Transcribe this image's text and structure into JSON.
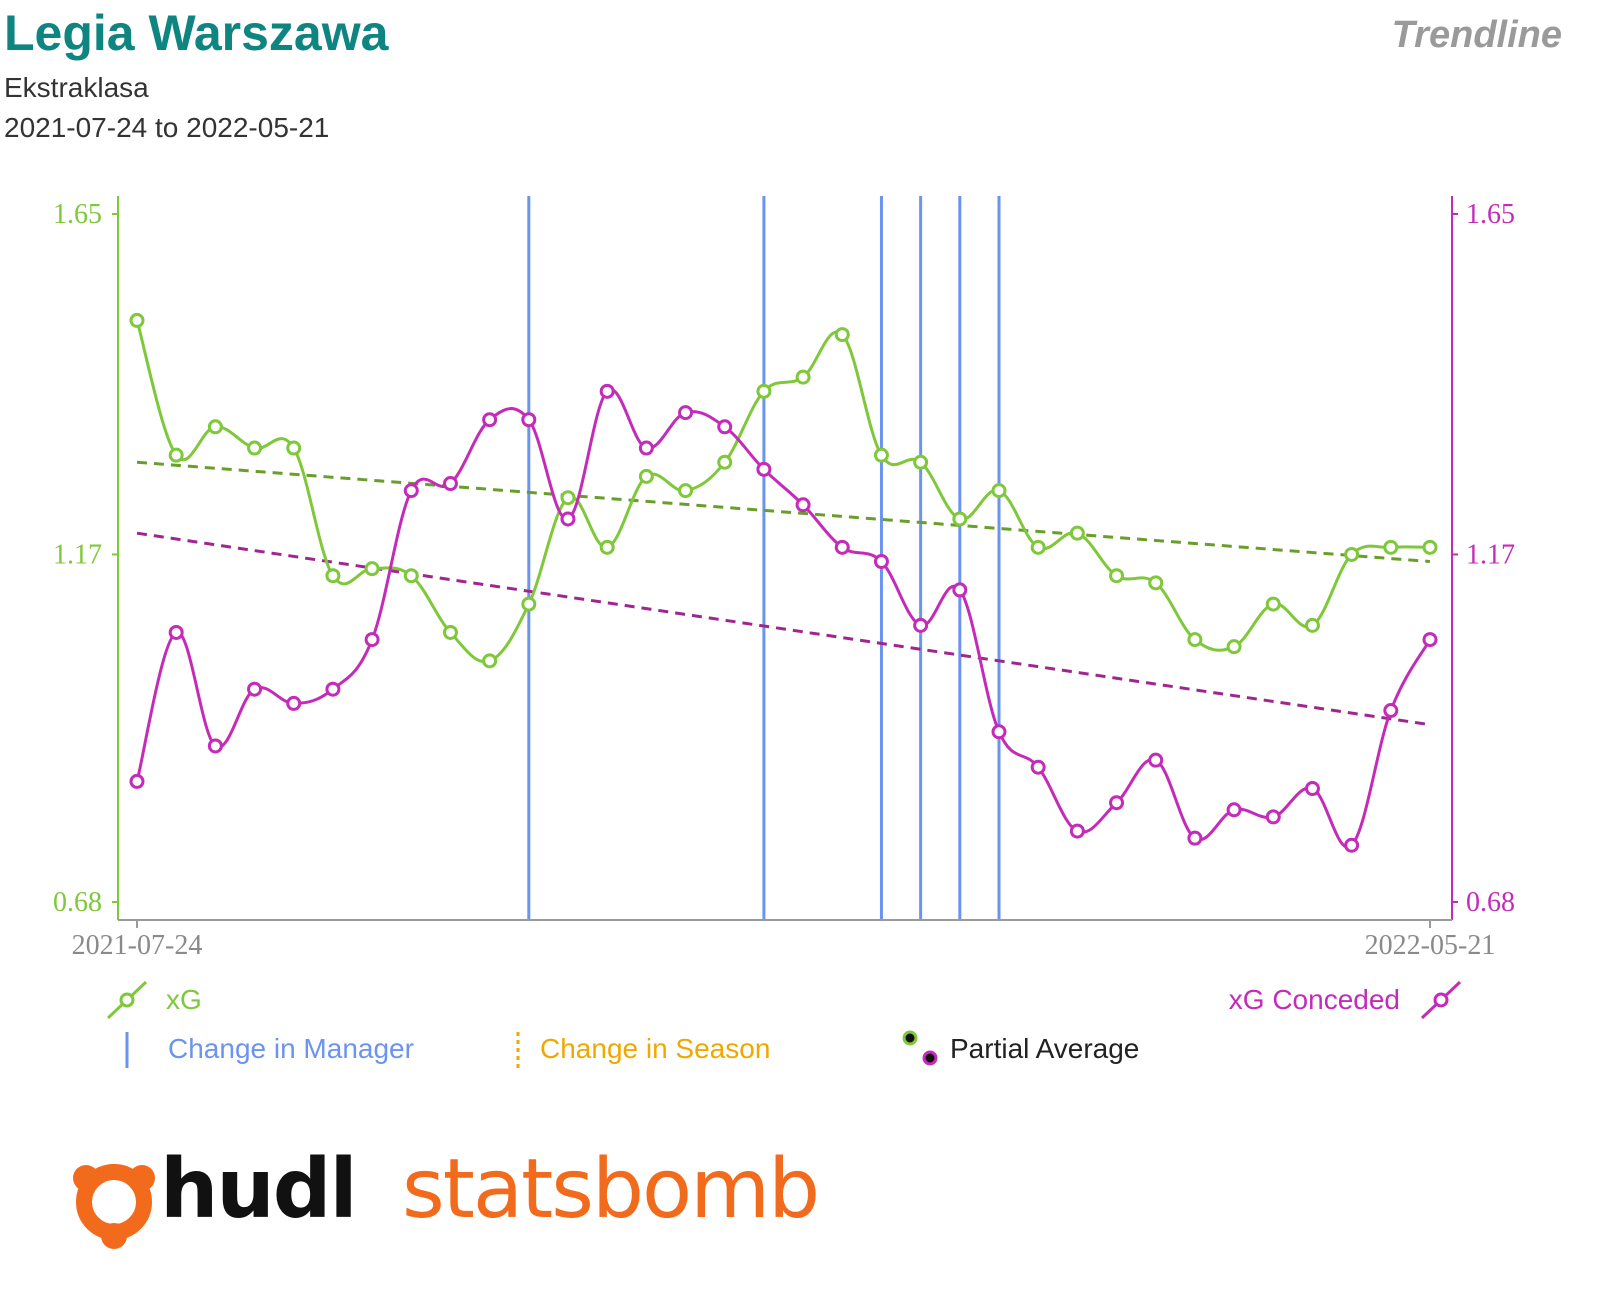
{
  "header": {
    "title": "Legia Warszawa",
    "subtitle_league": "Ekstraklasa",
    "subtitle_dates": "2021-07-24 to 2022-05-21",
    "badge": "Trendline"
  },
  "legend": {
    "xg": "xG",
    "xg_conceded": "xG Conceded",
    "manager": "Change in Manager",
    "season": "Change in Season",
    "partial": "Partial Average"
  },
  "logo": {
    "part1": "hudl",
    "part2": "statsbomb"
  },
  "colors": {
    "xg": "#7ec83a",
    "xg_conceded": "#c42bb9",
    "xg_trend": "#6a9e2a",
    "xg_conceded_trend": "#a0268f",
    "manager": "#6b93f0",
    "season": "#f0a800",
    "title": "#0e8580",
    "logo_orange": "#f26a1b"
  },
  "chart_data": {
    "type": "line",
    "x_tick_labels": [
      "2021-07-24",
      "2022-05-21"
    ],
    "y_ticks": [
      "0.68",
      "1.17",
      "1.65"
    ],
    "ylim": [
      0.68,
      1.65
    ],
    "match_count": 34,
    "series": [
      {
        "name": "xG",
        "values": [
          1.5,
          1.31,
          1.35,
          1.32,
          1.32,
          1.14,
          1.15,
          1.14,
          1.06,
          1.02,
          1.1,
          1.25,
          1.18,
          1.28,
          1.26,
          1.3,
          1.4,
          1.42,
          1.48,
          1.31,
          1.3,
          1.22,
          1.26,
          1.18,
          1.2,
          1.14,
          1.13,
          1.05,
          1.04,
          1.1,
          1.07,
          1.17,
          1.18,
          1.18
        ]
      },
      {
        "name": "xG Conceded",
        "values": [
          0.85,
          1.06,
          0.9,
          0.98,
          0.96,
          0.98,
          1.05,
          1.26,
          1.27,
          1.36,
          1.36,
          1.22,
          1.4,
          1.32,
          1.37,
          1.35,
          1.29,
          1.24,
          1.18,
          1.16,
          1.07,
          1.12,
          0.92,
          0.87,
          0.78,
          0.82,
          0.88,
          0.77,
          0.81,
          0.8,
          0.84,
          0.76,
          0.95,
          1.05
        ]
      }
    ],
    "trendlines": [
      {
        "series": "xG",
        "start": 1.3,
        "end": 1.16
      },
      {
        "series": "xG Conceded",
        "start": 1.2,
        "end": 0.93
      }
    ],
    "manager_changes_after_match": [
      10,
      16,
      19,
      20,
      21,
      22
    ]
  }
}
